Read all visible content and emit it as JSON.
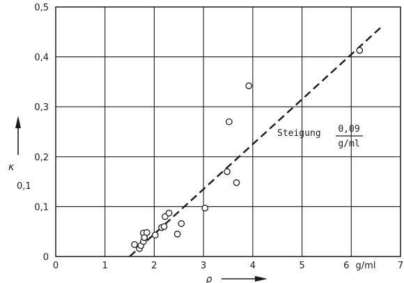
{
  "chart_data": {
    "type": "scatter",
    "title": "",
    "xlabel": "ρ",
    "x_unit_label": "g/ml",
    "ylabel_main": "κ",
    "ylabel_sub": "0,1",
    "xlim": [
      0,
      7
    ],
    "ylim": [
      0,
      0.5
    ],
    "x_ticks": [
      "0",
      "1",
      "2",
      "3",
      "4",
      "5",
      "6",
      "7"
    ],
    "y_ticks": [
      "0",
      "0,1",
      "0,2",
      "0,3",
      "0,4",
      "0,5"
    ],
    "grid": true,
    "points": [
      {
        "x": 1.6,
        "y": 0.024
      },
      {
        "x": 1.7,
        "y": 0.016
      },
      {
        "x": 1.73,
        "y": 0.022
      },
      {
        "x": 1.78,
        "y": 0.03
      },
      {
        "x": 1.78,
        "y": 0.047
      },
      {
        "x": 1.8,
        "y": 0.038
      },
      {
        "x": 1.85,
        "y": 0.048
      },
      {
        "x": 2.02,
        "y": 0.043
      },
      {
        "x": 2.15,
        "y": 0.058
      },
      {
        "x": 2.2,
        "y": 0.06
      },
      {
        "x": 2.22,
        "y": 0.08
      },
      {
        "x": 2.3,
        "y": 0.087
      },
      {
        "x": 2.47,
        "y": 0.045
      },
      {
        "x": 2.55,
        "y": 0.066
      },
      {
        "x": 3.03,
        "y": 0.097
      },
      {
        "x": 3.48,
        "y": 0.17
      },
      {
        "x": 3.52,
        "y": 0.27
      },
      {
        "x": 3.67,
        "y": 0.148
      },
      {
        "x": 3.92,
        "y": 0.342
      },
      {
        "x": 6.17,
        "y": 0.413
      }
    ],
    "fit_line": {
      "style": "dashed",
      "x": [
        1.5,
        6.6
      ],
      "y": [
        0,
        0.459
      ]
    },
    "annotation": {
      "text": "Steigung",
      "fraction_numerator": "0,09",
      "fraction_denominator": "g/ml"
    }
  }
}
